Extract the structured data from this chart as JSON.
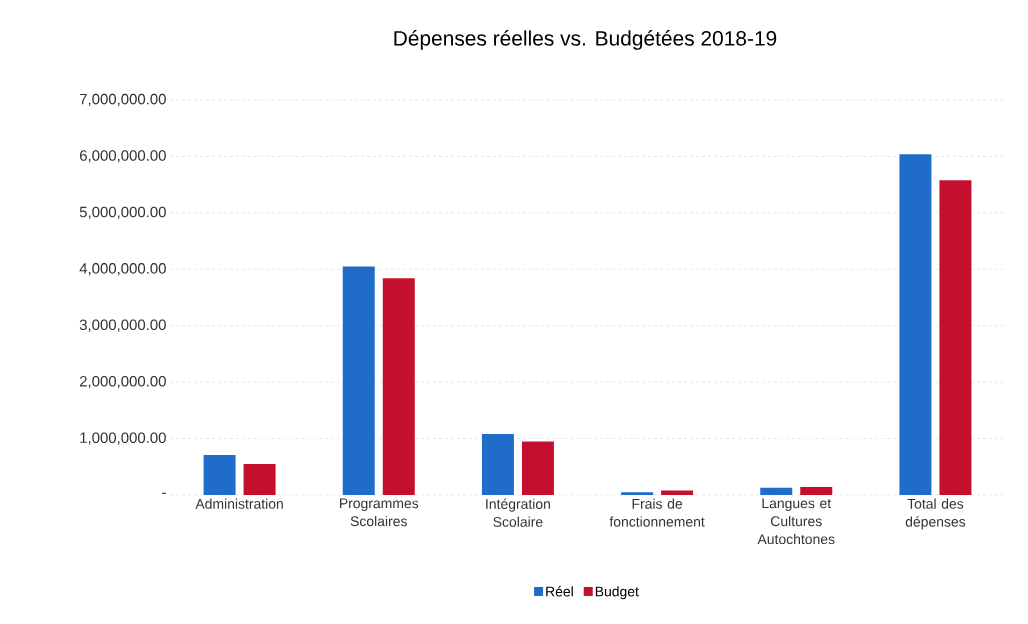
{
  "chart_data": {
    "type": "bar",
    "title": "Dépenses réelles vs. Budgétées 2018-19",
    "categories": [
      "Administration",
      "Programmes Scolaires",
      "Intégration Scolaire",
      "Frais de fonctionnement",
      "Langues et Cultures Autochtones",
      "Total des dépenses"
    ],
    "series": [
      {
        "name": "Réel",
        "color": "#1f6cc9",
        "values": [
          710000,
          4050000,
          1080000,
          50000,
          130000,
          6040000
        ]
      },
      {
        "name": "Budget",
        "color": "#c4102e",
        "values": [
          550000,
          3840000,
          950000,
          80000,
          140000,
          5580000
        ]
      }
    ],
    "ylim": [
      0,
      7000000
    ],
    "yticks": [
      {
        "value": 0,
        "label": "-"
      },
      {
        "value": 1000000,
        "label": "1,000,000.00"
      },
      {
        "value": 2000000,
        "label": "2,000,000.00"
      },
      {
        "value": 3000000,
        "label": "3,000,000.00"
      },
      {
        "value": 4000000,
        "label": "4,000,000.00"
      },
      {
        "value": 5000000,
        "label": "5,000,000.00"
      },
      {
        "value": 6000000,
        "label": "6,000,000.00"
      },
      {
        "value": 7000000,
        "label": "7,000,000.00"
      }
    ],
    "grid": "y",
    "legend": "bottom"
  }
}
